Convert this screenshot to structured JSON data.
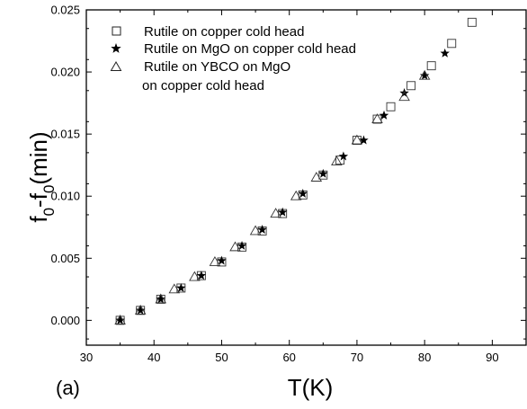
{
  "chart_data": {
    "type": "scatter",
    "panel_label": "(a)",
    "xlabel": "T(K)",
    "ylabel": "f",
    "ylabel_parts": [
      "f",
      "0",
      "-f",
      "0",
      "(min)"
    ],
    "xlim": [
      30,
      95
    ],
    "ylim": [
      -0.002,
      0.025
    ],
    "xticks": [
      30,
      40,
      50,
      60,
      70,
      80,
      90
    ],
    "xtick_labels": [
      "30",
      "40",
      "50",
      "60",
      "70",
      "80",
      "90"
    ],
    "yticks": [
      0.0,
      0.005,
      0.01,
      0.015,
      0.02,
      0.025
    ],
    "ytick_labels": [
      "0.000",
      "0.005",
      "0.010",
      "0.015",
      "0.020",
      "0.025"
    ],
    "grid": false,
    "legend_position": "top-left",
    "legend_extra_line": "on copper cold head",
    "series": [
      {
        "name": "Rutile on copper cold head",
        "marker": "open-square",
        "x": [
          35,
          38,
          41,
          44,
          47,
          50,
          53,
          56,
          59,
          62,
          65,
          67.5,
          70,
          73,
          75,
          78,
          81,
          84,
          87
        ],
        "y": [
          0.0,
          0.0008,
          0.0017,
          0.0026,
          0.0036,
          0.0047,
          0.0059,
          0.0072,
          0.0086,
          0.0101,
          0.0117,
          0.0129,
          0.0145,
          0.0162,
          0.0172,
          0.0189,
          0.0205,
          0.0223,
          0.024
        ]
      },
      {
        "name": "Rutile on MgO on copper cold  head",
        "marker": "filled-star",
        "x": [
          35,
          38,
          41,
          44,
          47,
          50,
          53,
          56,
          59,
          62,
          65,
          68,
          71,
          74,
          77,
          80,
          83
        ],
        "y": [
          0.0,
          0.0008,
          0.0017,
          0.0026,
          0.0036,
          0.0048,
          0.006,
          0.0073,
          0.0087,
          0.0102,
          0.0118,
          0.0132,
          0.0145,
          0.0165,
          0.0183,
          0.0197,
          0.0215
        ]
      },
      {
        "name": "Rutile on YBCO on MgO",
        "marker": "open-triangle",
        "x": [
          35,
          38,
          41,
          43,
          46,
          49,
          52,
          55,
          58,
          61,
          64,
          67,
          70,
          73,
          77,
          80
        ],
        "y": [
          0.0,
          0.0008,
          0.0017,
          0.0025,
          0.0035,
          0.0047,
          0.0059,
          0.0072,
          0.0086,
          0.01,
          0.0115,
          0.0128,
          0.0145,
          0.0162,
          0.018,
          0.0197
        ]
      }
    ]
  }
}
